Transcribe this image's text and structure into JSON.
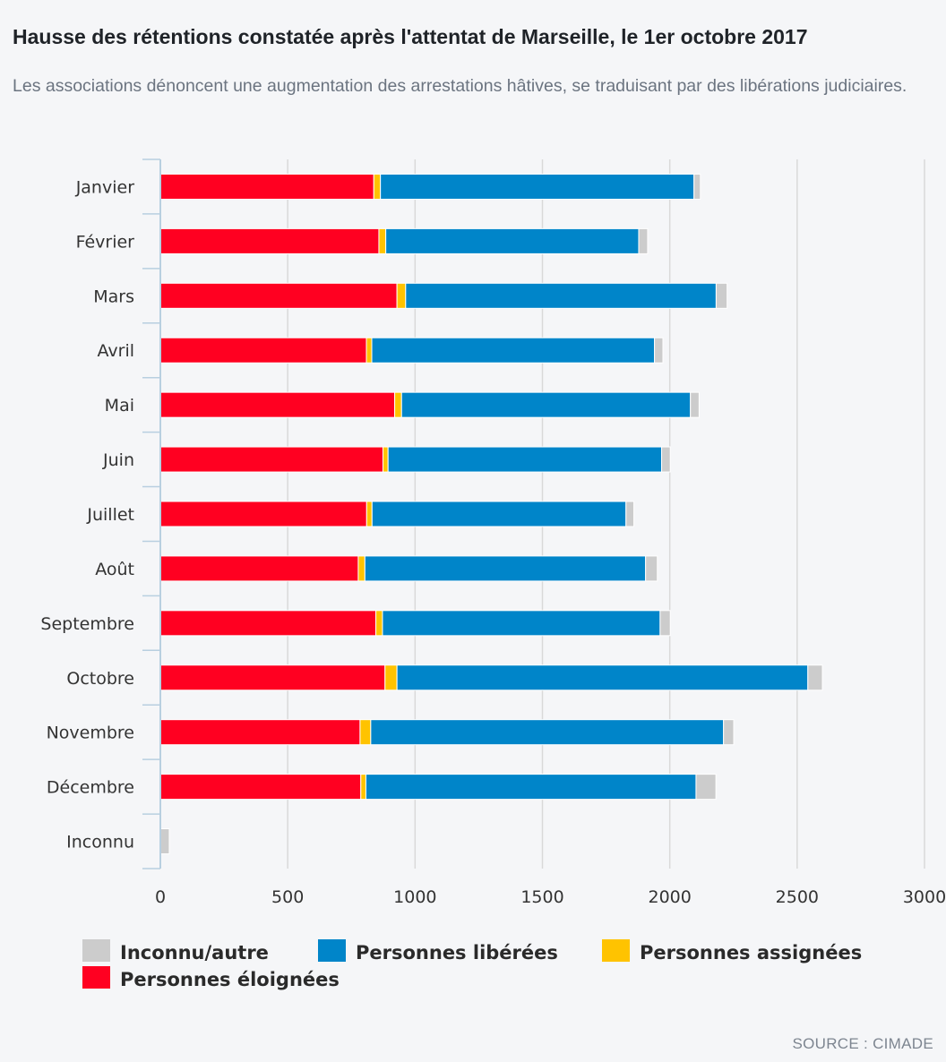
{
  "title": "Hausse des rétentions constatée après l'attentat de Marseille, le 1er octobre 2017",
  "subtitle": "Les associations dénoncent une augmentation des arrestations hâtives, se traduisant par des libérations judiciaires.",
  "source": "SOURCE : CIMADE",
  "colors": {
    "eloignees": "#ff0021",
    "assignees": "#ffc300",
    "liberees": "#0085c9",
    "inconnu": "#cccccc",
    "grid": "#d9d9d9",
    "axis": "#b8cfe0"
  },
  "chart_data": {
    "type": "bar",
    "orientation": "horizontal",
    "stacked": true,
    "title": "Hausse des rétentions constatée après l'attentat de Marseille, le 1er octobre 2017",
    "xlabel": "",
    "ylabel": "",
    "xlim": [
      0,
      3000
    ],
    "ticks": [
      0,
      500,
      1000,
      1500,
      2000,
      2500,
      3000
    ],
    "grid": true,
    "legend_position": "bottom-left",
    "categories": [
      "Janvier",
      "Février",
      "Mars",
      "Avril",
      "Mai",
      "Juin",
      "Juillet",
      "Août",
      "Septembre",
      "Octobre",
      "Novembre",
      "Décembre",
      "Inconnu"
    ],
    "series": [
      {
        "name": "Personnes éloignées",
        "key": "eloignees",
        "values": [
          838,
          858,
          929,
          809,
          920,
          874,
          810,
          777,
          846,
          882,
          784,
          787,
          0
        ]
      },
      {
        "name": "Personnes assignées",
        "key": "assignees",
        "values": [
          26,
          27,
          34,
          21,
          27,
          20,
          21,
          26,
          26,
          47,
          42,
          20,
          0
        ]
      },
      {
        "name": "Personnes libérées",
        "key": "liberees",
        "values": [
          1231,
          993,
          1219,
          1110,
          1134,
          1074,
          997,
          1102,
          1090,
          1613,
          1385,
          1296,
          0
        ]
      },
      {
        "name": "Inconnu/autre",
        "key": "inconnu",
        "values": [
          25,
          35,
          43,
          33,
          34,
          34,
          31,
          46,
          40,
          57,
          40,
          78,
          35
        ]
      }
    ],
    "legend": [
      "Inconnu/autre",
      "Personnes libérées",
      "Personnes assignées",
      "Personnes éloignées"
    ]
  }
}
